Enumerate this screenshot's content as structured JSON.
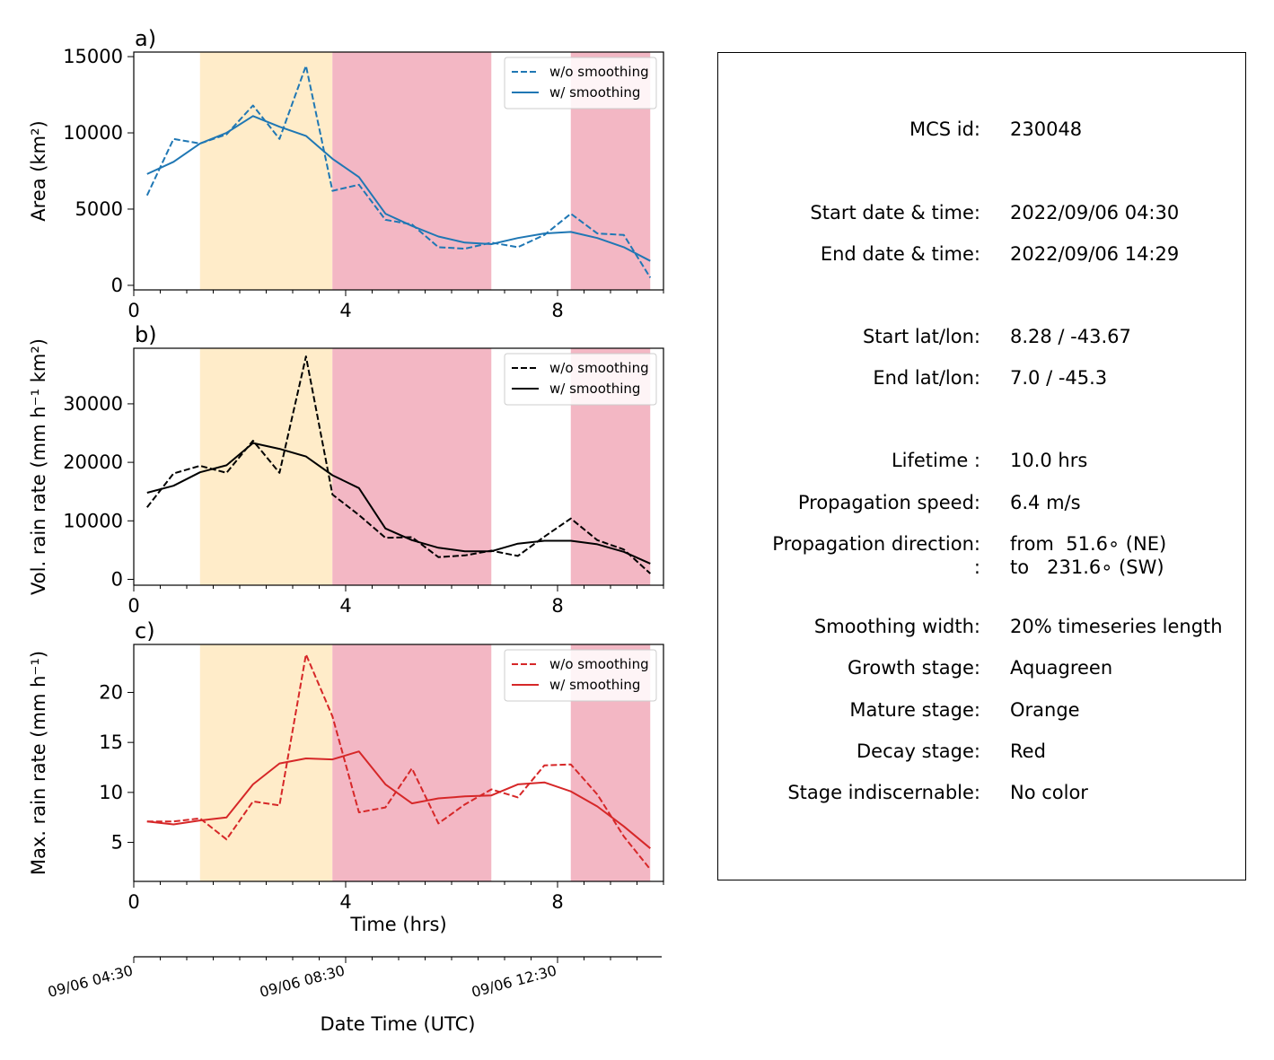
{
  "chart_data": [
    {
      "type": "line",
      "panel_label": "a)",
      "ylabel": "Area  (km²)",
      "xlabel": "",
      "xlim": [
        0,
        10
      ],
      "ylim": [
        -300,
        15300
      ],
      "yticks": [
        0,
        5000,
        10000,
        15000
      ],
      "xticks": [
        0,
        4,
        8
      ],
      "grid": false,
      "legend": "top-right",
      "color": "#1f77b4",
      "x": [
        0.25,
        0.75,
        1.25,
        1.75,
        2.25,
        2.75,
        3.25,
        3.75,
        4.25,
        4.75,
        5.25,
        5.75,
        6.25,
        6.75,
        7.25,
        7.75,
        8.25,
        8.75,
        9.25,
        9.75
      ],
      "series": [
        {
          "name": "w/o smoothing",
          "style": "dashed",
          "values": [
            5900,
            9600,
            9300,
            9900,
            11800,
            9600,
            14400,
            6200,
            6600,
            4300,
            4000,
            2500,
            2400,
            2800,
            2500,
            3300,
            4700,
            3400,
            3300,
            500
          ]
        },
        {
          "name": "w/ smoothing",
          "style": "solid",
          "values": [
            7300,
            8100,
            9300,
            10000,
            11100,
            10400,
            9800,
            8300,
            7100,
            4700,
            3900,
            3200,
            2800,
            2700,
            3100,
            3400,
            3500,
            3100,
            2500,
            1600
          ]
        }
      ]
    },
    {
      "type": "line",
      "panel_label": "b)",
      "ylabel": "Vol. rain rate (mm h⁻¹ km²)",
      "xlabel": "",
      "xlim": [
        0,
        10
      ],
      "ylim": [
        -1000,
        39500
      ],
      "yticks": [
        0,
        10000,
        20000,
        30000
      ],
      "xticks": [
        0,
        4,
        8
      ],
      "grid": false,
      "legend": "top-right",
      "color": "#000000",
      "x": [
        0.25,
        0.75,
        1.25,
        1.75,
        2.25,
        2.75,
        3.25,
        3.75,
        4.25,
        4.75,
        5.25,
        5.75,
        6.25,
        6.75,
        7.25,
        7.75,
        8.25,
        8.75,
        9.25,
        9.75
      ],
      "series": [
        {
          "name": "w/o smoothing",
          "style": "dashed",
          "values": [
            12300,
            18100,
            19400,
            18200,
            23700,
            18200,
            38100,
            14500,
            11000,
            7100,
            7200,
            3800,
            4100,
            4900,
            4000,
            7300,
            10400,
            6700,
            5100,
            1000
          ]
        },
        {
          "name": "w/ smoothing",
          "style": "solid",
          "values": [
            14800,
            16000,
            18300,
            19500,
            23300,
            22300,
            21000,
            17800,
            15600,
            8700,
            6700,
            5400,
            4800,
            4800,
            6100,
            6600,
            6600,
            6000,
            4700,
            2700
          ]
        }
      ]
    },
    {
      "type": "line",
      "panel_label": "c)",
      "ylabel": "Max. rain rate  (mm h⁻¹)",
      "xlabel": "Time (hrs)",
      "xlim": [
        0,
        10
      ],
      "ylim": [
        1.1,
        24.8
      ],
      "yticks": [
        5,
        10,
        15,
        20
      ],
      "xticks": [
        0,
        4,
        8
      ],
      "grid": false,
      "legend": "top-right",
      "color": "#d62728",
      "x": [
        0.25,
        0.75,
        1.25,
        1.75,
        2.25,
        2.75,
        3.25,
        3.75,
        4.25,
        4.75,
        5.25,
        5.75,
        6.25,
        6.75,
        7.25,
        7.75,
        8.25,
        8.75,
        9.25,
        9.75
      ],
      "series": [
        {
          "name": "w/o smoothing",
          "style": "dashed",
          "values": [
            7.1,
            7.1,
            7.4,
            5.3,
            9.1,
            8.7,
            23.8,
            17.6,
            8.0,
            8.5,
            12.4,
            6.9,
            8.8,
            10.3,
            9.5,
            12.7,
            12.8,
            9.8,
            5.6,
            2.3
          ]
        },
        {
          "name": "w/ smoothing",
          "style": "solid",
          "values": [
            7.1,
            6.8,
            7.2,
            7.5,
            10.8,
            12.9,
            13.4,
            13.3,
            14.1,
            10.8,
            8.9,
            9.4,
            9.6,
            9.7,
            10.8,
            11.0,
            10.1,
            8.6,
            6.6,
            4.4
          ]
        }
      ]
    }
  ],
  "stages": [
    {
      "start": 1.25,
      "end": 3.75,
      "color": "#ffecc9"
    },
    {
      "start": 3.75,
      "end": 6.75,
      "color": "#f3b7c4"
    },
    {
      "start": 8.25,
      "end": 9.75,
      "color": "#f3b7c4"
    }
  ],
  "datetime_axis": {
    "label": "Date Time (UTC)",
    "ticks": [
      {
        "hrs": 0,
        "label": "09/06 04:30"
      },
      {
        "hrs": 4,
        "label": "09/06 08:30"
      },
      {
        "hrs": 8,
        "label": "09/06 12:30"
      }
    ]
  },
  "info": [
    {
      "label": "MCS id:",
      "value": "230048"
    },
    {
      "label": "Start date & time:",
      "value": "2022/09/06 04:30"
    },
    {
      "label": "End date & time:",
      "value": "2022/09/06 14:29"
    },
    {
      "label": "Start lat/lon:",
      "value": "8.28 / -43.67"
    },
    {
      "label": "End lat/lon:",
      "value": "7.0 / -45.3"
    },
    {
      "label": "Lifetime :",
      "value": "10.0 hrs"
    },
    {
      "label": "Propagation speed:",
      "value": "6.4 m/s"
    },
    {
      "label": "Propagation direction:",
      "value": "from  51.6∘ (NE)"
    },
    {
      "label": ":",
      "value": "to   231.6∘ (SW)"
    },
    {
      "label": "Smoothing width:",
      "value": "20% timeseries length"
    },
    {
      "label": "Growth stage:",
      "value": "Aquagreen"
    },
    {
      "label": "Mature stage:",
      "value": "Orange"
    },
    {
      "label": "Decay stage:",
      "value": "Red"
    },
    {
      "label": "Stage indiscernable:",
      "value": "No color"
    }
  ]
}
